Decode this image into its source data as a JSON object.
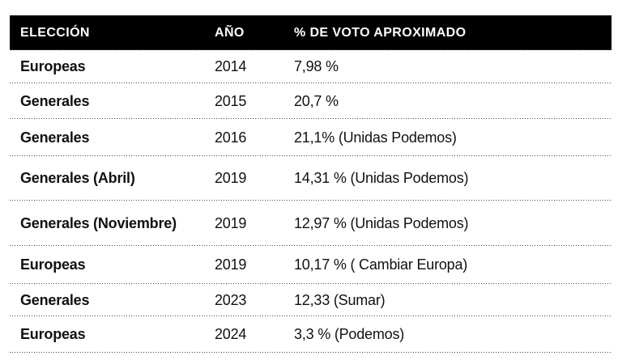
{
  "chart_data": {
    "type": "table",
    "columns": [
      "ELECCIÓN",
      "AÑO",
      "% DE VOTO APROXIMADO"
    ],
    "rows": [
      {
        "election": "Europeas",
        "year": "2014",
        "vote": "7,98 %"
      },
      {
        "election": "Generales",
        "year": "2015",
        "vote": "20,7 %"
      },
      {
        "election": "Generales",
        "year": "2016",
        "vote": "21,1% (Unidas Podemos)"
      },
      {
        "election": "Generales (Abril)",
        "year": "2019",
        "vote": "14,31 % (Unidas Podemos)"
      },
      {
        "election": "Generales (Noviembre)",
        "year": "2019",
        "vote": "12,97 % (Unidas Podemos)"
      },
      {
        "election": "Europeas",
        "year": "2019",
        "vote": "10,17 % ( Cambiar Europa)"
      },
      {
        "election": "Generales",
        "year": "2023",
        "vote": "12,33 (Sumar)"
      },
      {
        "election": "Europeas",
        "year": "2024",
        "vote": "3,3 % (Podemos)"
      }
    ],
    "layout": {
      "legend": "none",
      "grid": "dotted-row-separators",
      "header_style": "black-band"
    }
  },
  "colors": {
    "header_bg": "#000000",
    "header_text": "#ffffff",
    "body_text": "#111111",
    "separator": "#47474f",
    "page_bg": "#ffffff"
  }
}
